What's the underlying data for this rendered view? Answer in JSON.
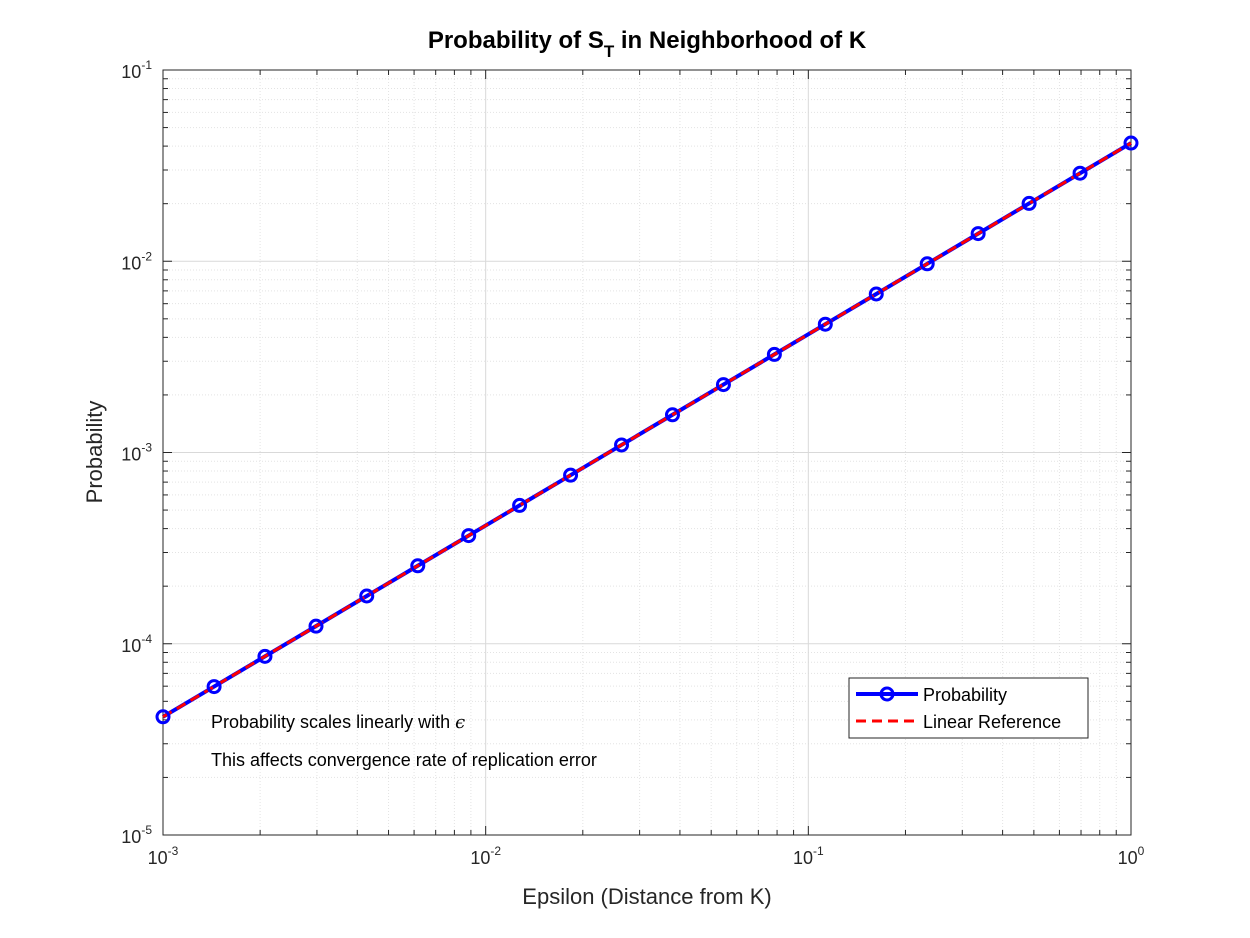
{
  "chart_data": {
    "type": "line",
    "title": {
      "main": "Probability of S",
      "sub": "T",
      "rest": " in Neighborhood of K"
    },
    "xlabel": "Epsilon (Distance from K)",
    "ylabel": "Probability",
    "xscale": "log",
    "yscale": "log",
    "xlim": [
      0.001,
      1
    ],
    "ylim": [
      1e-05,
      0.1
    ],
    "grid": true,
    "minor_grid": true,
    "x_ticks": [
      {
        "value": 0.001,
        "base": "10",
        "exp": "-3"
      },
      {
        "value": 0.01,
        "base": "10",
        "exp": "-2"
      },
      {
        "value": 0.1,
        "base": "10",
        "exp": "-1"
      },
      {
        "value": 1,
        "base": "10",
        "exp": "0"
      }
    ],
    "y_ticks": [
      {
        "value": 1e-05,
        "base": "10",
        "exp": "-5"
      },
      {
        "value": 0.0001,
        "base": "10",
        "exp": "-4"
      },
      {
        "value": 0.001,
        "base": "10",
        "exp": "-3"
      },
      {
        "value": 0.01,
        "base": "10",
        "exp": "-2"
      },
      {
        "value": 0.1,
        "base": "10",
        "exp": "-1"
      }
    ],
    "x": [
      0.001,
      0.00144,
      0.00207,
      0.00298,
      0.00428,
      0.00616,
      0.00886,
      0.01274,
      0.01833,
      0.02637,
      0.03793,
      0.05456,
      0.07848,
      0.11288,
      0.16238,
      0.23357,
      0.33598,
      0.48329,
      0.69519,
      1.0
    ],
    "series": [
      {
        "name": "Probability",
        "style": "solid-marker",
        "color": "#0000ff",
        "values": [
          4.15e-05,
          5.97e-05,
          8.59e-05,
          0.0001236,
          0.0001777,
          0.0002557,
          0.0003678,
          0.000529,
          0.000761,
          0.001095,
          0.001575,
          0.002265,
          0.003258,
          0.004687,
          0.006742,
          0.009697,
          0.01395,
          0.02006,
          0.02886,
          0.0415
        ]
      },
      {
        "name": "Linear Reference",
        "style": "dashed",
        "color": "#ff0000",
        "values": [
          4.15e-05,
          5.97e-05,
          8.59e-05,
          0.0001236,
          0.0001777,
          0.0002557,
          0.0003678,
          0.000529,
          0.000761,
          0.001095,
          0.001575,
          0.002265,
          0.003258,
          0.004687,
          0.006742,
          0.009697,
          0.01395,
          0.02006,
          0.02886,
          0.0415
        ]
      }
    ],
    "annotations": [
      {
        "prefix": "Probability scales linearly with ",
        "symbol": "ϵ"
      },
      {
        "prefix": "This affects convergence rate of replication error",
        "symbol": ""
      }
    ],
    "legend_position": "lower-right"
  }
}
